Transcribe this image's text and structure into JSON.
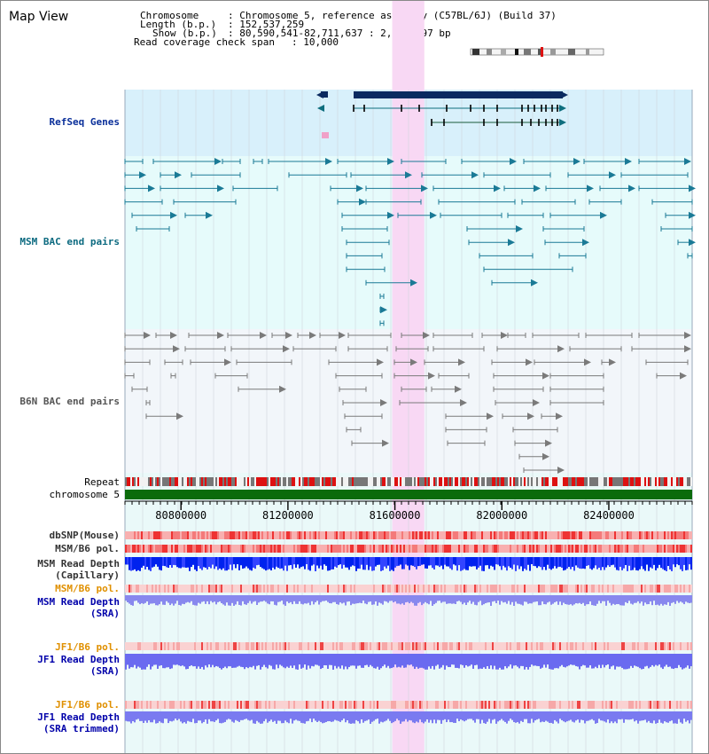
{
  "title": "Map View",
  "header": {
    "chromosome_key": "Chromosome",
    "chromosome_value": ": Chromosome 5, reference assembly (C57BL/6J) (Build 37)",
    "length_key": "Length (b.p.)",
    "length_value": ": 152,537,259",
    "show_key": "Show (b.p.)",
    "show_value": ": 80,590,541-82,711,637 : 2,121,097 bp",
    "coverage_key": "Read coverage check span",
    "coverage_value": ": 10,000"
  },
  "tracks": {
    "refseq": "RefSeq Genes",
    "msm_bac": "MSM BAC end pairs",
    "b6n_bac": "B6N BAC end pairs",
    "repeat": "Repeat",
    "chromosome": "chromosome 5",
    "dbsnp": "dbSNP(Mouse)",
    "msm_b6_pol_1": "MSM/B6 pol.",
    "msm_read_depth_cap_1": "MSM Read Depth",
    "msm_read_depth_cap_2": "(Capillary)",
    "msm_b6_pol_2": "MSM/B6 pol.",
    "msm_read_depth_sra_1": "MSM Read Depth",
    "msm_read_depth_sra_2": "(SRA)",
    "jf1_b6_pol_1": "JF1/B6 pol.",
    "jf1_read_depth_sra_1": "JF1 Read Depth",
    "jf1_read_depth_sra_2": "(SRA)",
    "jf1_b6_pol_2": "JF1/B6 pol.",
    "jf1_read_depth_trim_1": "JF1 Read Depth",
    "jf1_read_depth_trim_2": "(SRA trimmed)"
  },
  "axis": {
    "start": 80590541,
    "end": 82711637,
    "ticks": [
      "80800000",
      "81200000",
      "81600000",
      "82000000",
      "82400000"
    ],
    "highlight_range": [
      81590000,
      81710000
    ]
  },
  "colors": {
    "refseq_bg": "#d8f0fb",
    "msm_bg": "#e6fbfb",
    "b6n_bg": "#f2f6fa",
    "lower_bg": "#eaf9f9",
    "highlight": "#f8d8f4",
    "gene_navy": "#0a2a60",
    "gene_teal": "#0e6e7e",
    "msm_bac": "#1a7a96",
    "b6n_bac": "#7a7a7a",
    "chrom_green": "#0b6b0b",
    "repeat_red": "#dd1111",
    "repeat_gray": "#777777",
    "depth_blue": "#0022ee",
    "depth_light": "#8888ee"
  }
}
